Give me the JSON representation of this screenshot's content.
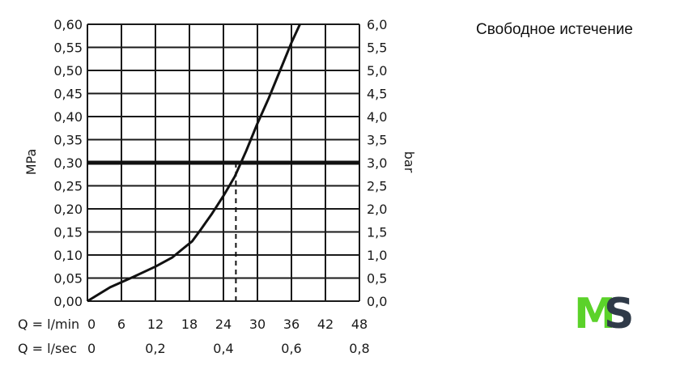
{
  "heading": "Свободное истечение",
  "logo": {
    "text": "MS",
    "colors": {
      "M": "#5bd22a",
      "S": "#2f3a48"
    }
  },
  "chart_data": {
    "type": "line",
    "title": "",
    "ylabel_left": "MPa",
    "ylabel_right": "bar",
    "x_row_labels": [
      "Q = l/min",
      "Q = l/sec"
    ],
    "x_ticks_lmin": [
      "0",
      "6",
      "12",
      "18",
      "24",
      "30",
      "36",
      "42",
      "48"
    ],
    "x_ticks_lsec": [
      "0",
      "0,2",
      "0,4",
      "0,6",
      "0,8"
    ],
    "y_ticks_left": [
      "0,00",
      "0,05",
      "0,10",
      "0,15",
      "0,20",
      "0,25",
      "0,30",
      "0,35",
      "0,40",
      "0,45",
      "0,50",
      "0,55",
      "0,60"
    ],
    "y_ticks_right": [
      "0,0",
      "0,5",
      "1,0",
      "1,5",
      "2,0",
      "2,5",
      "3,0",
      "3,5",
      "4,0",
      "4,5",
      "5,0",
      "5,5",
      "6,0"
    ],
    "xlim": [
      0,
      48
    ],
    "ylim": [
      0,
      0.6
    ],
    "x_lsec_values": [
      0,
      0.2,
      0.4,
      0.6,
      0.8
    ],
    "grid": true,
    "series": [
      {
        "x": [
          0,
          4,
          8,
          12,
          15,
          17,
          18.5,
          20,
          22,
          24,
          26,
          28,
          30,
          32,
          34,
          36,
          37.5
        ],
        "y": [
          0,
          0.03,
          0.052,
          0.075,
          0.095,
          0.115,
          0.13,
          0.155,
          0.19,
          0.228,
          0.27,
          0.325,
          0.385,
          0.44,
          0.5,
          0.56,
          0.6
        ],
        "color": "#111111"
      }
    ],
    "reference_line": {
      "y": 0.3,
      "color": "#111111"
    },
    "marker": {
      "x": 26.2,
      "y": 0.3,
      "style": "dashed-drop"
    }
  }
}
